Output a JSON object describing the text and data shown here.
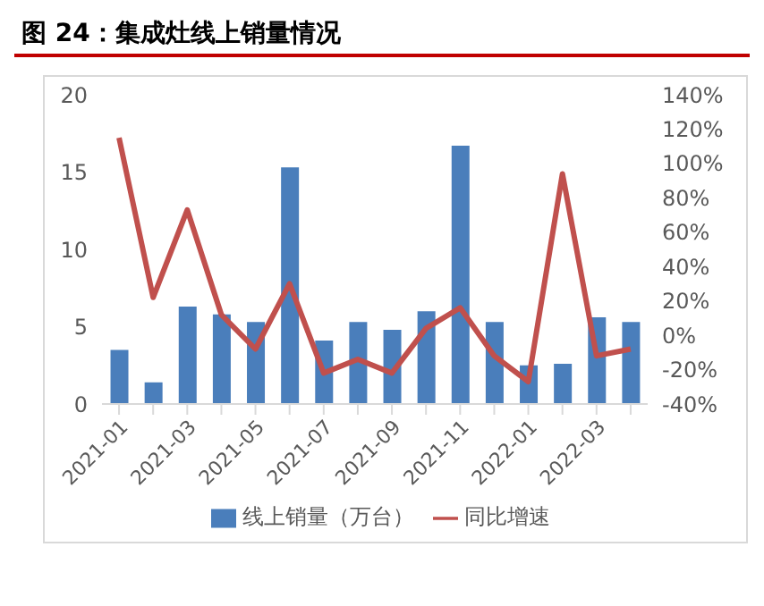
{
  "chart_data": {
    "type": "bar",
    "title": "图 24：集成灶线上销量情况",
    "categories": [
      "2021-01",
      null,
      "2021-03",
      null,
      "2021-05",
      null,
      "2021-07",
      null,
      "2021-09",
      null,
      "2021-11",
      null,
      "2022-01",
      null,
      "2022-03",
      null
    ],
    "series": [
      {
        "name": "线上销量（万台）",
        "color": "#4a7ebb",
        "values": [
          3.5,
          1.4,
          6.3,
          5.8,
          5.3,
          15.3,
          4.1,
          5.3,
          4.8,
          6.0,
          16.7,
          5.3,
          2.5,
          2.6,
          5.6,
          5.3
        ]
      },
      {
        "name": "同比增速",
        "type": "line",
        "axis": "y2",
        "color": "#c0504d",
        "values": [
          115,
          22,
          73,
          12,
          -8,
          30,
          -22,
          -14,
          -22,
          4,
          16,
          -12,
          -27,
          94,
          -12,
          -8
        ]
      }
    ],
    "ylim": [
      0,
      20
    ],
    "yticks": [
      0,
      5,
      10,
      15,
      20
    ],
    "y2lim": [
      -40,
      140
    ],
    "y2ticks": [
      {
        "value": -40,
        "label": "-40%"
      },
      {
        "value": -20,
        "label": "-20%"
      },
      {
        "value": 0,
        "label": "0%"
      },
      {
        "value": 20,
        "label": "20%"
      },
      {
        "value": 40,
        "label": "40%"
      },
      {
        "value": 60,
        "label": "60%"
      },
      {
        "value": 80,
        "label": "80%"
      },
      {
        "value": 100,
        "label": "100%"
      },
      {
        "value": 120,
        "label": "120%"
      },
      {
        "value": 140,
        "label": "140%"
      }
    ],
    "legend": "bottom",
    "marker": "none"
  }
}
